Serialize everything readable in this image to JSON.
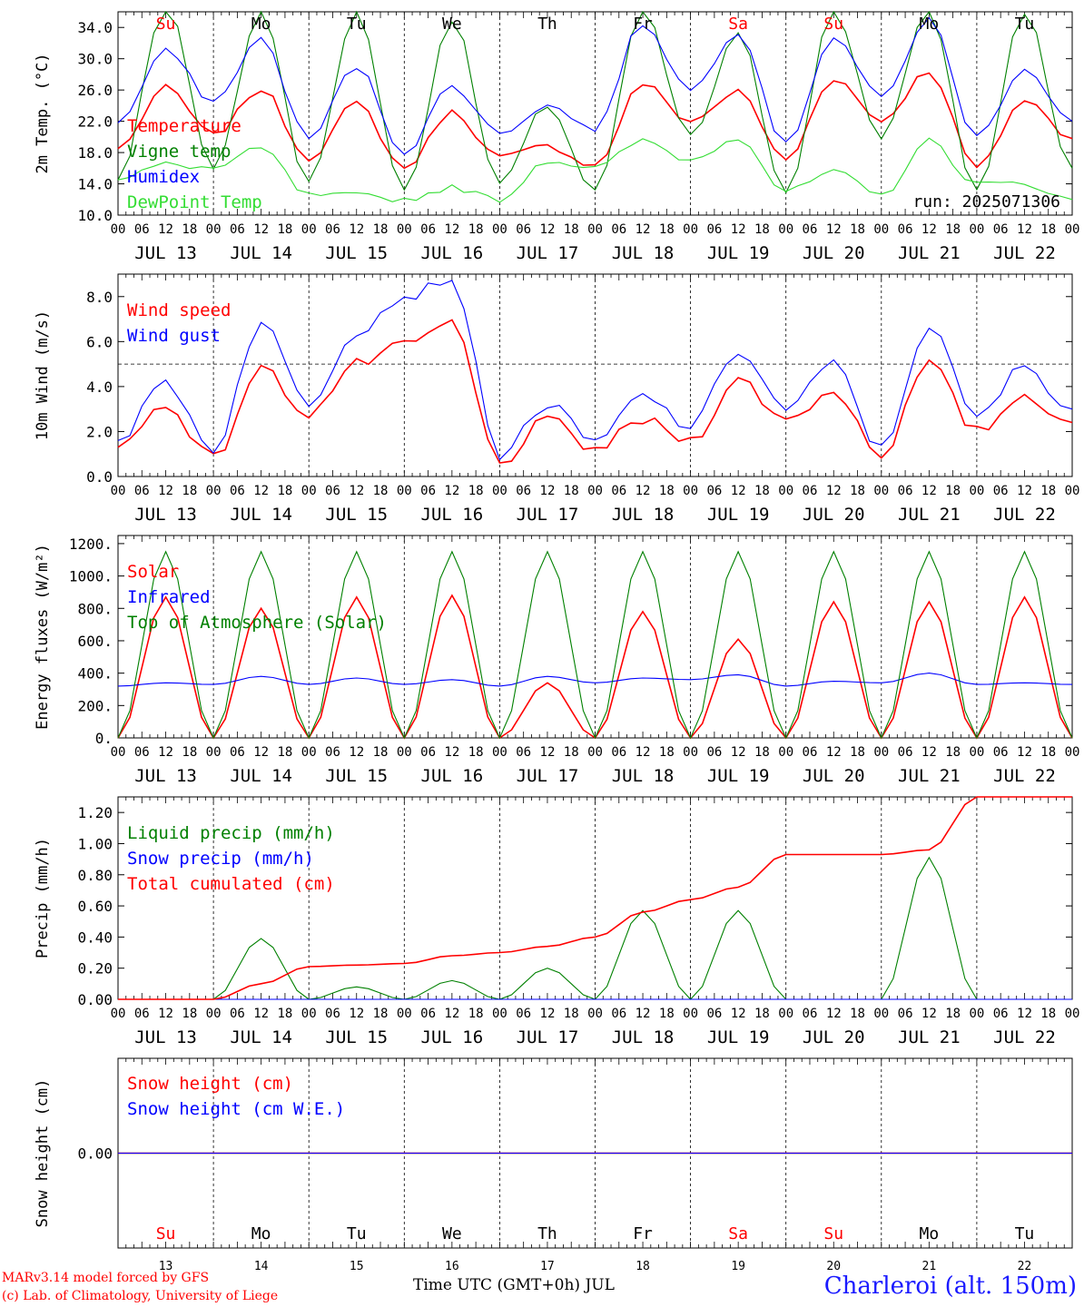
{
  "run_label": "run: 2025071306",
  "footer": {
    "credit_line1": "MARv3.14 model forced by GFS",
    "credit_line2": "(c) Lab. of Climatology, University of Liege",
    "time_axis_label": "Time UTC (GMT+0h)",
    "month_label": "JUL",
    "station": "Charleroi (alt. 150m)"
  },
  "colors": {
    "red": "#ff0000",
    "green": "#008000",
    "blue": "#0000ff",
    "light_green": "#33dd33",
    "weekend": "#ff0000",
    "weekday": "#000000"
  },
  "days": [
    {
      "abbr": "Su",
      "num": "13",
      "date": "JUL 13",
      "weekend": true
    },
    {
      "abbr": "Mo",
      "num": "14",
      "date": "JUL 14",
      "weekend": false
    },
    {
      "abbr": "Tu",
      "num": "15",
      "date": "JUL 15",
      "weekend": false
    },
    {
      "abbr": "We",
      "num": "16",
      "date": "JUL 16",
      "weekend": false
    },
    {
      "abbr": "Th",
      "num": "17",
      "date": "JUL 17",
      "weekend": false
    },
    {
      "abbr": "Fr",
      "num": "18",
      "date": "JUL 18",
      "weekend": false
    },
    {
      "abbr": "Sa",
      "num": "19",
      "date": "JUL 19",
      "weekend": true
    },
    {
      "abbr": "Su",
      "num": "20",
      "date": "JUL 20",
      "weekend": true
    },
    {
      "abbr": "Mo",
      "num": "21",
      "date": "JUL 21",
      "weekend": false
    },
    {
      "abbr": "Tu",
      "num": "22",
      "date": "JUL 22",
      "weekend": false
    }
  ],
  "hour_ticks": [
    "00",
    "06",
    "12",
    "18"
  ],
  "hour_end_label": "00",
  "chart_data": [
    {
      "type": "line",
      "ylabel": "2m Temp. (°C)",
      "ylim": [
        10,
        36
      ],
      "yticks": [
        10,
        14,
        18,
        22,
        26,
        30,
        34
      ],
      "tick_decimals": 1,
      "show_day_abbr": true,
      "x": [
        0,
        12,
        24,
        36,
        48,
        60,
        72,
        84,
        96,
        108,
        120,
        132,
        144,
        156,
        168,
        180,
        192,
        204,
        216,
        228,
        240
      ],
      "series": [
        {
          "name": "Temperature",
          "color": "red",
          "values": [
            18.5,
            26.3,
            20.2,
            26.1,
            17.3,
            24.3,
            16.0,
            23.2,
            17.4,
            18.8,
            16.3,
            26.8,
            22.0,
            25.8,
            17.0,
            27.5,
            22.1,
            28.4,
            16.0,
            24.7,
            19.8
          ]
        },
        {
          "name": "Vigne temp",
          "color": "green",
          "values": [
            14.5,
            37,
            16,
            36,
            14,
            36,
            13,
            35,
            14,
            24,
            13,
            36,
            20,
            33,
            13,
            36,
            20,
            36,
            13,
            36,
            16
          ]
        },
        {
          "name": "Humidex",
          "color": "blue",
          "values": [
            21.8,
            31.0,
            24.5,
            32.5,
            19.8,
            29.0,
            18.0,
            26.5,
            20.5,
            24.0,
            21.0,
            34.5,
            26.0,
            33.5,
            19.0,
            32.8,
            25.0,
            35.0,
            20.0,
            28.8,
            22.0
          ]
        },
        {
          "name": "DewPoint Temp",
          "color": "light_green",
          "values": [
            14.5,
            16.5,
            16.0,
            18.5,
            12.5,
            12.5,
            12.0,
            13.5,
            12.0,
            17.0,
            16.0,
            19.5,
            17.0,
            20.0,
            13.0,
            15.5,
            12.5,
            19.5,
            14.0,
            14.0,
            12.0
          ]
        }
      ]
    },
    {
      "type": "line",
      "ylabel": "10m Wind (m/s)",
      "ylim": [
        0,
        9
      ],
      "yticks": [
        0,
        2,
        4,
        6,
        8
      ],
      "tick_decimals": 1,
      "show_day_abbr": false,
      "ref_line": 5,
      "x": [
        0,
        12,
        24,
        36,
        48,
        60,
        72,
        84,
        96,
        108,
        120,
        132,
        144,
        156,
        168,
        180,
        192,
        204,
        216,
        228,
        240
      ],
      "series": [
        {
          "name": "Wind speed",
          "color": "red",
          "values": [
            1.3,
            3.2,
            0.8,
            4.8,
            2.8,
            5.0,
            5.8,
            6.8,
            0.6,
            2.5,
            1.2,
            2.5,
            1.6,
            4.3,
            2.5,
            3.8,
            1.0,
            5.0,
            2.0,
            3.6,
            2.4
          ]
        },
        {
          "name": "Wind gust",
          "color": "blue",
          "values": [
            1.6,
            4.2,
            1.2,
            6.8,
            3.3,
            6.5,
            8.0,
            8.8,
            1.0,
            3.2,
            1.5,
            3.6,
            2.2,
            5.6,
            3.0,
            5.0,
            1.2,
            6.7,
            2.6,
            4.9,
            3.0
          ]
        }
      ]
    },
    {
      "type": "line",
      "ylabel": "Energy fluxes (W/m²)",
      "ylim": [
        0,
        1250
      ],
      "yticks": [
        0,
        200,
        400,
        600,
        800,
        1000,
        1200
      ],
      "tick_decimals": 0,
      "tick_trailing_dot": true,
      "show_day_abbr": false,
      "x": [
        0,
        12,
        24,
        36,
        48,
        60,
        72,
        84,
        96,
        108,
        120,
        132,
        144,
        156,
        168,
        180,
        192,
        204,
        216,
        228,
        240
      ],
      "series": [
        {
          "name": "Solar",
          "color": "red",
          "values": [
            0,
            870,
            0,
            800,
            0,
            870,
            0,
            880,
            0,
            340,
            0,
            780,
            0,
            610,
            0,
            840,
            0,
            840,
            0,
            870,
            0
          ]
        },
        {
          "name": "Infrared",
          "color": "blue",
          "values": [
            320,
            340,
            330,
            380,
            330,
            370,
            330,
            360,
            320,
            380,
            340,
            370,
            360,
            390,
            320,
            350,
            340,
            400,
            330,
            340,
            330
          ]
        },
        {
          "name": "Top of Atmosphere (Solar)",
          "color": "green",
          "values": [
            0,
            1150,
            0,
            1150,
            0,
            1150,
            0,
            1150,
            0,
            1150,
            0,
            1150,
            0,
            1150,
            0,
            1150,
            0,
            1150,
            0,
            1150,
            0
          ]
        }
      ]
    },
    {
      "type": "line",
      "ylabel": "Precip (mm/h)",
      "ylim": [
        0,
        1.3
      ],
      "yticks": [
        0,
        0.2,
        0.4,
        0.6,
        0.8,
        1.0,
        1.2
      ],
      "tick_decimals": 2,
      "show_day_abbr": false,
      "x": [
        0,
        12,
        24,
        36,
        48,
        60,
        72,
        84,
        96,
        108,
        120,
        132,
        144,
        156,
        168,
        180,
        192,
        204,
        216,
        228,
        240
      ],
      "series": [
        {
          "name": "Liquid precip (mm/h)",
          "color": "green",
          "values": [
            0,
            0,
            0,
            0.39,
            0,
            0.08,
            0,
            0.12,
            0,
            0.2,
            0,
            0.57,
            0,
            0.57,
            0,
            0,
            0,
            0.91,
            0,
            0,
            0
          ]
        },
        {
          "name": "Snow precip (mm/h)",
          "color": "blue",
          "values": [
            0,
            0,
            0,
            0,
            0,
            0,
            0,
            0,
            0,
            0,
            0,
            0,
            0,
            0,
            0,
            0,
            0,
            0,
            0,
            0,
            0
          ]
        },
        {
          "name": "Total cumulated (cm)",
          "color": "red",
          "values": [
            0,
            0,
            0,
            0.1,
            0.21,
            0.22,
            0.23,
            0.28,
            0.3,
            0.34,
            0.4,
            0.56,
            0.64,
            0.72,
            0.93,
            0.93,
            0.93,
            0.96,
            1.3,
            1.3,
            1.3
          ]
        }
      ]
    },
    {
      "type": "line",
      "ylabel": "Snow height (cm)",
      "ylim": [
        -0.5,
        0.5
      ],
      "yticks": [
        0
      ],
      "tick_decimals": 2,
      "show_day_abbr": false,
      "x": [
        0,
        240
      ],
      "series": [
        {
          "name": "Snow height (cm)",
          "color": "red",
          "values": [
            0,
            0
          ]
        },
        {
          "name": "Snow height (cm W.E.)",
          "color": "blue",
          "values": [
            0,
            0
          ]
        }
      ]
    }
  ]
}
